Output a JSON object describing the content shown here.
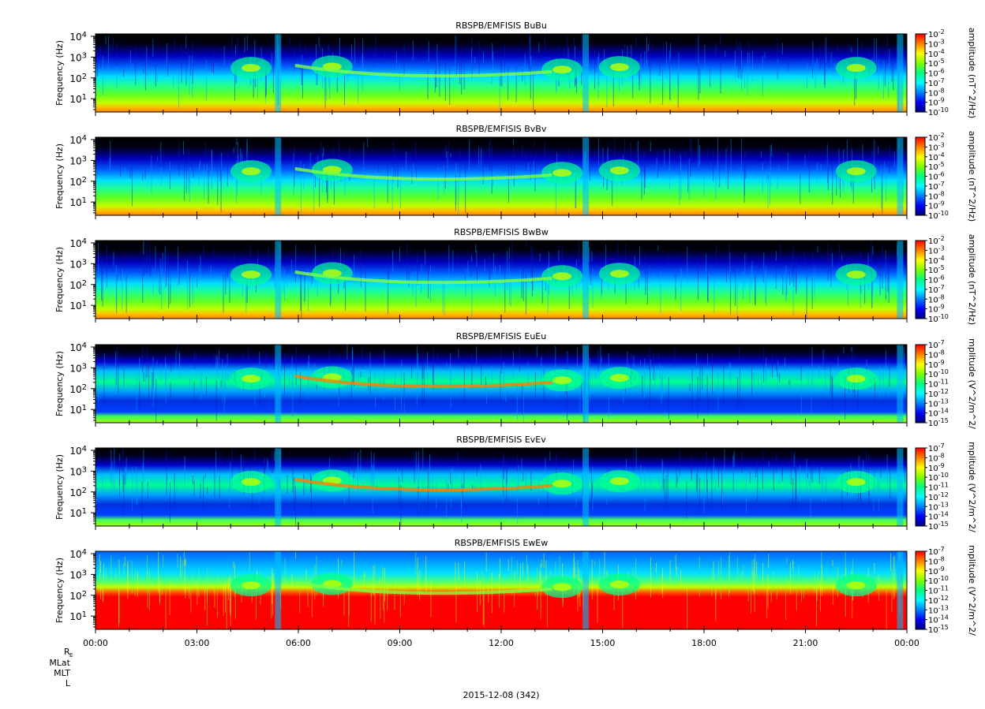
{
  "chart_data": {
    "type": "heatmap",
    "x_axis": {
      "tick_labels": [
        "00:00",
        "03:00",
        "06:00",
        "09:00",
        "12:00",
        "15:00",
        "18:00",
        "21:00",
        "00:00"
      ],
      "range_hours": [
        0,
        24
      ],
      "date_label": "2015-12-08 (342)",
      "ephemeris_labels": [
        "R",
        "E",
        "MLat",
        "MLT",
        "L"
      ]
    },
    "panels": [
      {
        "title": "RBSPB/EMFISIS  BuBu",
        "ylabel": "Frequency (Hz)",
        "y_log_range": [
          2.3,
          13000
        ],
        "y_ticks": [
          {
            "base": "10",
            "exp": "1"
          },
          {
            "base": "10",
            "exp": "2"
          },
          {
            "base": "10",
            "exp": "3"
          },
          {
            "base": "10",
            "exp": "4"
          }
        ],
        "colorbar_label": "amplitude (nT^2/Hz)",
        "colorbar_ticks": [
          {
            "base": "10",
            "exp": "-2"
          },
          {
            "base": "10",
            "exp": "-3"
          },
          {
            "base": "10",
            "exp": "-4"
          },
          {
            "base": "10",
            "exp": "-5"
          },
          {
            "base": "10",
            "exp": "-6"
          },
          {
            "base": "10",
            "exp": "-7"
          },
          {
            "base": "10",
            "exp": "-8"
          },
          {
            "base": "10",
            "exp": "-9"
          },
          {
            "base": "10",
            "exp": "-10"
          }
        ],
        "kind": "B"
      },
      {
        "title": "RBSPB/EMFISIS  BvBv",
        "ylabel": "Frequency (Hz)",
        "y_log_range": [
          2.3,
          13000
        ],
        "y_ticks": [
          {
            "base": "10",
            "exp": "1"
          },
          {
            "base": "10",
            "exp": "2"
          },
          {
            "base": "10",
            "exp": "3"
          },
          {
            "base": "10",
            "exp": "4"
          }
        ],
        "colorbar_label": "amplitude (nT^2/Hz)",
        "colorbar_ticks": [
          {
            "base": "10",
            "exp": "-2"
          },
          {
            "base": "10",
            "exp": "-3"
          },
          {
            "base": "10",
            "exp": "-4"
          },
          {
            "base": "10",
            "exp": "-5"
          },
          {
            "base": "10",
            "exp": "-6"
          },
          {
            "base": "10",
            "exp": "-7"
          },
          {
            "base": "10",
            "exp": "-8"
          },
          {
            "base": "10",
            "exp": "-9"
          },
          {
            "base": "10",
            "exp": "-10"
          }
        ],
        "kind": "B"
      },
      {
        "title": "RBSPB/EMFISIS  BwBw",
        "ylabel": "Frequency (Hz)",
        "y_log_range": [
          2.3,
          13000
        ],
        "y_ticks": [
          {
            "base": "10",
            "exp": "1"
          },
          {
            "base": "10",
            "exp": "2"
          },
          {
            "base": "10",
            "exp": "3"
          },
          {
            "base": "10",
            "exp": "4"
          }
        ],
        "colorbar_label": "amplitude (nT^2/Hz)",
        "colorbar_ticks": [
          {
            "base": "10",
            "exp": "-2"
          },
          {
            "base": "10",
            "exp": "-3"
          },
          {
            "base": "10",
            "exp": "-4"
          },
          {
            "base": "10",
            "exp": "-5"
          },
          {
            "base": "10",
            "exp": "-6"
          },
          {
            "base": "10",
            "exp": "-7"
          },
          {
            "base": "10",
            "exp": "-8"
          },
          {
            "base": "10",
            "exp": "-9"
          },
          {
            "base": "10",
            "exp": "-10"
          }
        ],
        "kind": "B"
      },
      {
        "title": "RBSPB/EMFISIS  EuEu",
        "ylabel": "Frequency (Hz)",
        "y_log_range": [
          2.3,
          13000
        ],
        "y_ticks": [
          {
            "base": "10",
            "exp": "1"
          },
          {
            "base": "10",
            "exp": "2"
          },
          {
            "base": "10",
            "exp": "3"
          },
          {
            "base": "10",
            "exp": "4"
          }
        ],
        "colorbar_label": "mplitude (V^2/m^2/",
        "colorbar_ticks": [
          {
            "base": "10",
            "exp": "-7"
          },
          {
            "base": "10",
            "exp": "-8"
          },
          {
            "base": "10",
            "exp": "-9"
          },
          {
            "base": "10",
            "exp": "-10"
          },
          {
            "base": "10",
            "exp": "-11"
          },
          {
            "base": "10",
            "exp": "-12"
          },
          {
            "base": "10",
            "exp": "-13"
          },
          {
            "base": "10",
            "exp": "-14"
          },
          {
            "base": "10",
            "exp": "-15"
          }
        ],
        "kind": "E"
      },
      {
        "title": "RBSPB/EMFISIS  EvEv",
        "ylabel": "Frequency (Hz)",
        "y_log_range": [
          2.3,
          13000
        ],
        "y_ticks": [
          {
            "base": "10",
            "exp": "1"
          },
          {
            "base": "10",
            "exp": "2"
          },
          {
            "base": "10",
            "exp": "3"
          },
          {
            "base": "10",
            "exp": "4"
          }
        ],
        "colorbar_label": "mplitude (V^2/m^2/",
        "colorbar_ticks": [
          {
            "base": "10",
            "exp": "-7"
          },
          {
            "base": "10",
            "exp": "-8"
          },
          {
            "base": "10",
            "exp": "-9"
          },
          {
            "base": "10",
            "exp": "-10"
          },
          {
            "base": "10",
            "exp": "-11"
          },
          {
            "base": "10",
            "exp": "-12"
          },
          {
            "base": "10",
            "exp": "-13"
          },
          {
            "base": "10",
            "exp": "-14"
          },
          {
            "base": "10",
            "exp": "-15"
          }
        ],
        "kind": "E"
      },
      {
        "title": "RBSPB/EMFISIS  EwEw",
        "ylabel": "Frequency (Hz)",
        "y_log_range": [
          2.3,
          13000
        ],
        "y_ticks": [
          {
            "base": "10",
            "exp": "1"
          },
          {
            "base": "10",
            "exp": "2"
          },
          {
            "base": "10",
            "exp": "3"
          },
          {
            "base": "10",
            "exp": "4"
          }
        ],
        "colorbar_label": "mplitude (V^2/m^2/",
        "colorbar_ticks": [
          {
            "base": "10",
            "exp": "-7"
          },
          {
            "base": "10",
            "exp": "-8"
          },
          {
            "base": "10",
            "exp": "-9"
          },
          {
            "base": "10",
            "exp": "-10"
          },
          {
            "base": "10",
            "exp": "-11"
          },
          {
            "base": "10",
            "exp": "-12"
          },
          {
            "base": "10",
            "exp": "-13"
          },
          {
            "base": "10",
            "exp": "-14"
          },
          {
            "base": "10",
            "exp": "-15"
          }
        ],
        "kind": "Ew"
      }
    ],
    "colormap": [
      "#000080",
      "#0000ff",
      "#0080ff",
      "#00ffff",
      "#00ff80",
      "#80ff00",
      "#ffff00",
      "#ff8000",
      "#ff0000"
    ],
    "grid": false
  }
}
